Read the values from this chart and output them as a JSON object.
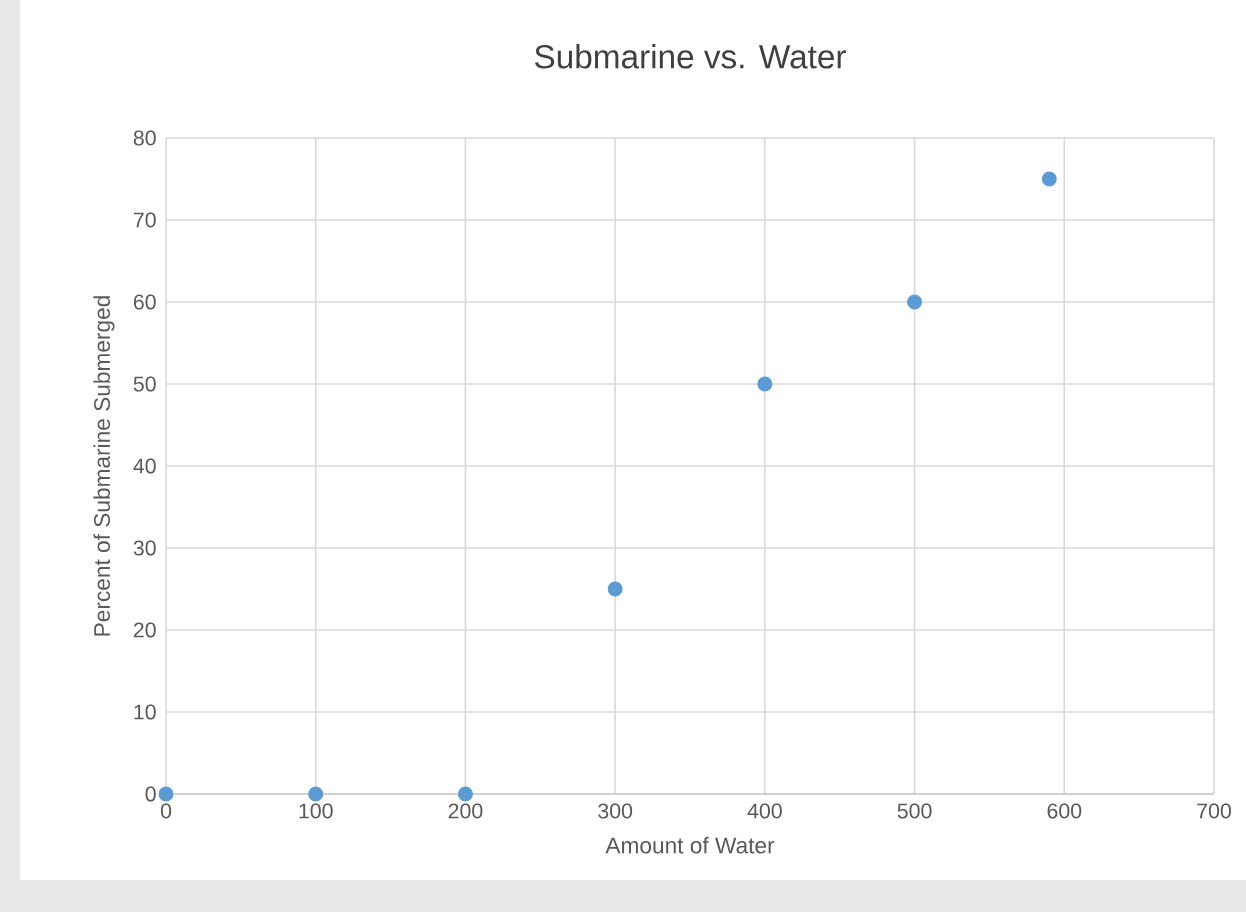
{
  "chart_data": {
    "type": "scatter",
    "title": "Submarine vs. Water",
    "xlabel": "Amount of Water",
    "ylabel": "Percent of Submarine Submerged",
    "x": [
      0,
      100,
      200,
      300,
      400,
      500,
      590
    ],
    "series": [
      {
        "color": "#5b9bd5",
        "values": [
          0,
          0,
          0,
          25,
          50,
          60,
          75
        ]
      }
    ],
    "xlim": [
      0,
      700
    ],
    "ylim": [
      0,
      80
    ],
    "xticks": [
      0,
      100,
      200,
      300,
      400,
      500,
      600,
      700
    ],
    "yticks": [
      0,
      10,
      20,
      30,
      40,
      50,
      60,
      70,
      80
    ],
    "grid": true,
    "marker": "circle"
  }
}
